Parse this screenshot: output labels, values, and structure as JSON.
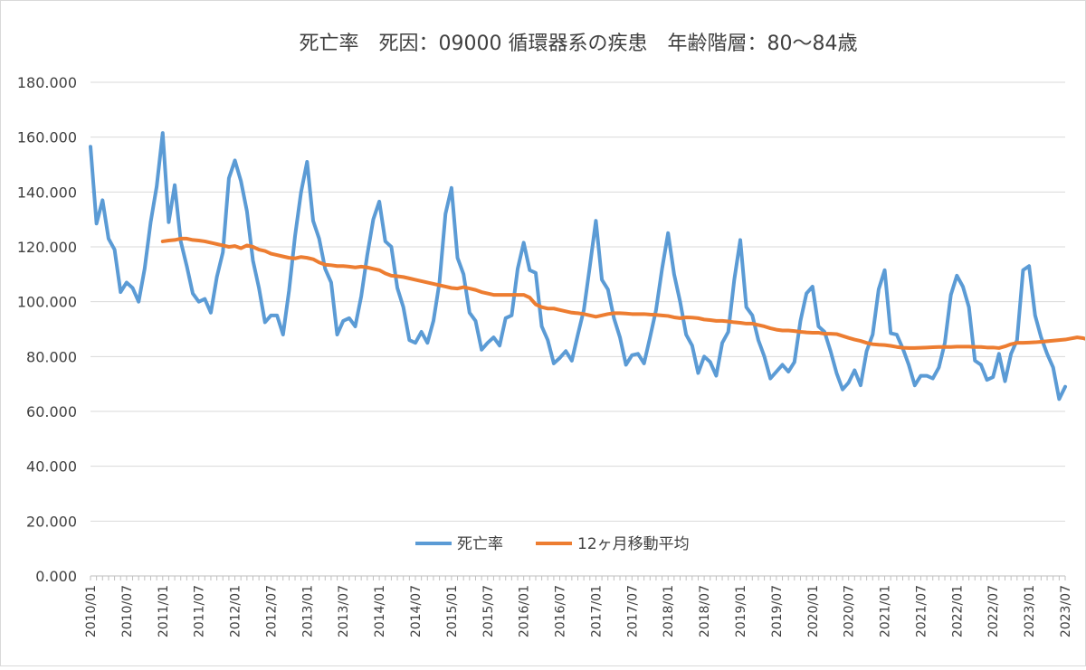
{
  "chart_data": {
    "type": "line",
    "title": "死亡率　死因：09000 循環器系の疾患　年齢階層：80～84歳",
    "xlabel": "",
    "ylabel": "",
    "ylim": [
      0,
      180
    ],
    "y_ticks": [
      "0.000",
      "20.000",
      "40.000",
      "60.000",
      "80.000",
      "100.000",
      "120.000",
      "140.000",
      "160.000",
      "180.000"
    ],
    "x_tick_labels": [
      "2010/01",
      "2010/07",
      "2011/01",
      "2011/07",
      "2012/01",
      "2012/07",
      "2013/01",
      "2013/07",
      "2014/01",
      "2014/07",
      "2015/01",
      "2015/07",
      "2016/01",
      "2016/07",
      "2017/01",
      "2017/07",
      "2018/01",
      "2018/07",
      "2019/01",
      "2019/07",
      "2020/01",
      "2020/07",
      "2021/01",
      "2021/07",
      "2022/01",
      "2022/07",
      "2023/01",
      "2023/07"
    ],
    "grid": true,
    "legend": "bottom-center",
    "colors": {
      "series1": "#5b9bd5",
      "series2": "#ed7d31"
    },
    "series": [
      {
        "name": "死亡率",
        "values": [
          156.5,
          128.5,
          137,
          123,
          119,
          103.5,
          107,
          105,
          100,
          112,
          129,
          142,
          161.5,
          129,
          142.5,
          122,
          113,
          103,
          100,
          101,
          96,
          109,
          118,
          145,
          151.5,
          144,
          133,
          115,
          105,
          92.5,
          95,
          95,
          88,
          104,
          124,
          140,
          151,
          129.5,
          123,
          112,
          107,
          88,
          93,
          94,
          91,
          102,
          117,
          130,
          136.5,
          122,
          120,
          105,
          98,
          86,
          85,
          89,
          85,
          93,
          107,
          132,
          141.5,
          116,
          110,
          96,
          93,
          82.5,
          85,
          87,
          84,
          94,
          95,
          112,
          121.5,
          111.5,
          110.5,
          91,
          86,
          77.5,
          79.5,
          82,
          78.5,
          88,
          97,
          113,
          129.5,
          108,
          104.5,
          94,
          87,
          77,
          80.5,
          81,
          77.5,
          87,
          97,
          112,
          125,
          110,
          100,
          88,
          84,
          74,
          80,
          78,
          73,
          85,
          89,
          108,
          122.5,
          98,
          95,
          86,
          80,
          72,
          74.5,
          77,
          74.5,
          78,
          93,
          103,
          105.5,
          91,
          89,
          82,
          74,
          68,
          70.5,
          75,
          69.5,
          82,
          88,
          104.5,
          111.5,
          88.5,
          88,
          83,
          77,
          69.5,
          73,
          73,
          72,
          76,
          85,
          102.5,
          109.5,
          105.5,
          98,
          78.5,
          77,
          71.5,
          72.5,
          81,
          71,
          81,
          86,
          111.5,
          113,
          95,
          87,
          81,
          76,
          64.5,
          69
        ]
      },
      {
        "name": "12ヶ月移動平均",
        "start_index": 12,
        "values": [
          122,
          122.3,
          122.5,
          123,
          123,
          122.5,
          122.3,
          122,
          121.5,
          121,
          120.5,
          120,
          120.3,
          119.5,
          120.5,
          120,
          119,
          118.5,
          117.5,
          117,
          116.5,
          116,
          115.8,
          116.3,
          116,
          115.5,
          114.3,
          113.5,
          113.3,
          113,
          113,
          112.8,
          112.5,
          112.8,
          112.5,
          112,
          111.5,
          110.3,
          109.5,
          109.3,
          109,
          108.5,
          108,
          107.5,
          107,
          106.5,
          106,
          105.5,
          105,
          104.8,
          105.3,
          104.8,
          104.3,
          103.5,
          103,
          102.5,
          102.5,
          102.5,
          102.5,
          102.5,
          102.5,
          101.5,
          99,
          98,
          97.5,
          97.5,
          97,
          96.5,
          96,
          95.8,
          95.5,
          95,
          94.5,
          95,
          95.5,
          95.8,
          95.8,
          95.7,
          95.5,
          95.5,
          95.5,
          95.3,
          95.2,
          95,
          94.8,
          94.3,
          94,
          94.3,
          94.2,
          94,
          93.5,
          93.3,
          93,
          93,
          92.8,
          92.5,
          92.3,
          92,
          92,
          91.5,
          91,
          90.3,
          89.8,
          89.5,
          89.5,
          89.3,
          89,
          88.8,
          88.7,
          88.7,
          88.3,
          88.3,
          88.2,
          87.5,
          86.8,
          86.2,
          85.7,
          85,
          84.5,
          84.3,
          84.2,
          83.9,
          83.5,
          83.2,
          83.1,
          83.1,
          83.2,
          83.3,
          83.4,
          83.5,
          83.5,
          83.5,
          83.6,
          83.6,
          83.6,
          83.5,
          83.5,
          83.3,
          83.3,
          83.1,
          83.7,
          84.5,
          85,
          85,
          85.1,
          85.2,
          85.4,
          85.6,
          85.8,
          86,
          86.2,
          86.6,
          87,
          86.7,
          86,
          85.8,
          85.5,
          85.2,
          84.8,
          84.5
        ]
      }
    ]
  }
}
